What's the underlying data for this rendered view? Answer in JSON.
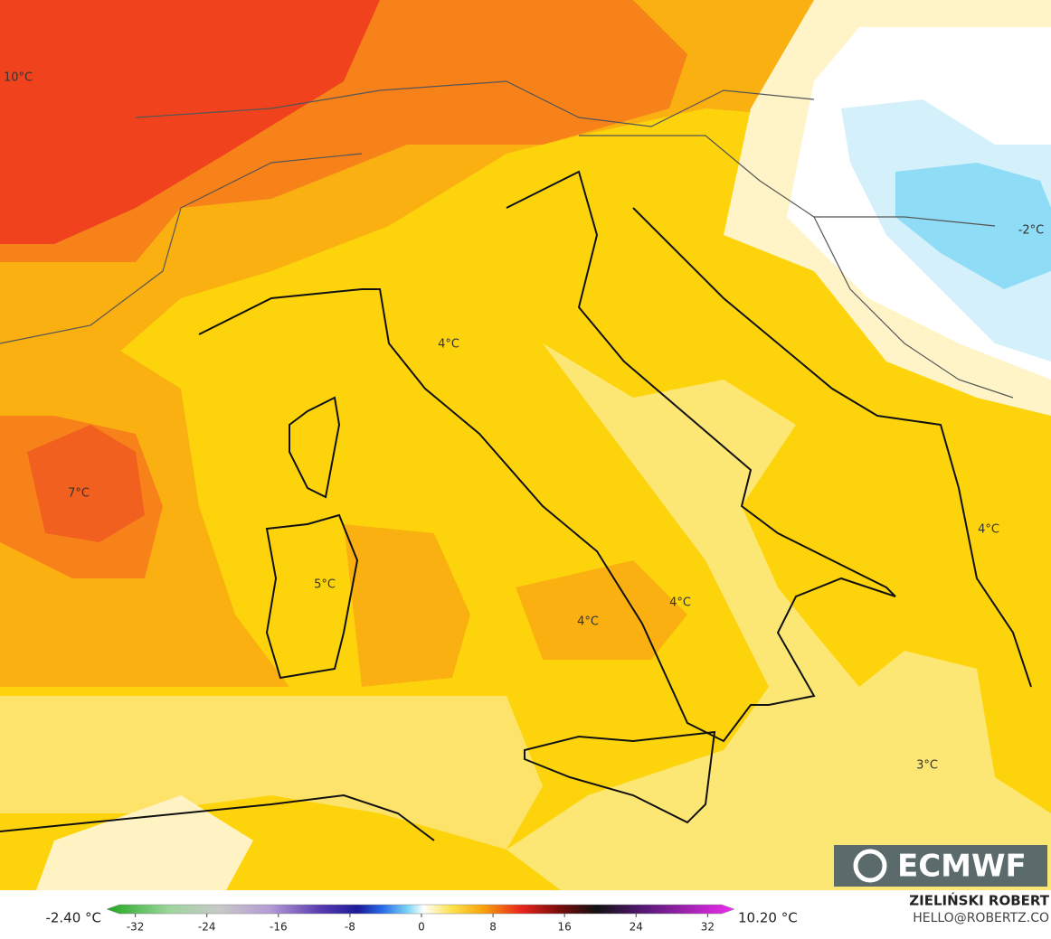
{
  "map_labels": [
    "10°C",
    "-2°C",
    "4°C",
    "7°C",
    "5°C",
    "4°C",
    "4°C",
    "4°C",
    "3°C"
  ],
  "logo": "ECMWF",
  "colorbar": {
    "min_label": "-2.40 °C",
    "max_label": "10.20 °C",
    "range": [
      -35.2,
      35
    ],
    "ticks": [
      -32,
      -24,
      -16,
      -8,
      0,
      8,
      16,
      24,
      32
    ]
  },
  "credit": {
    "name": "ZIELIŃSKI ROBERT",
    "email": "HELLO@ROBERTZ.CO"
  }
}
